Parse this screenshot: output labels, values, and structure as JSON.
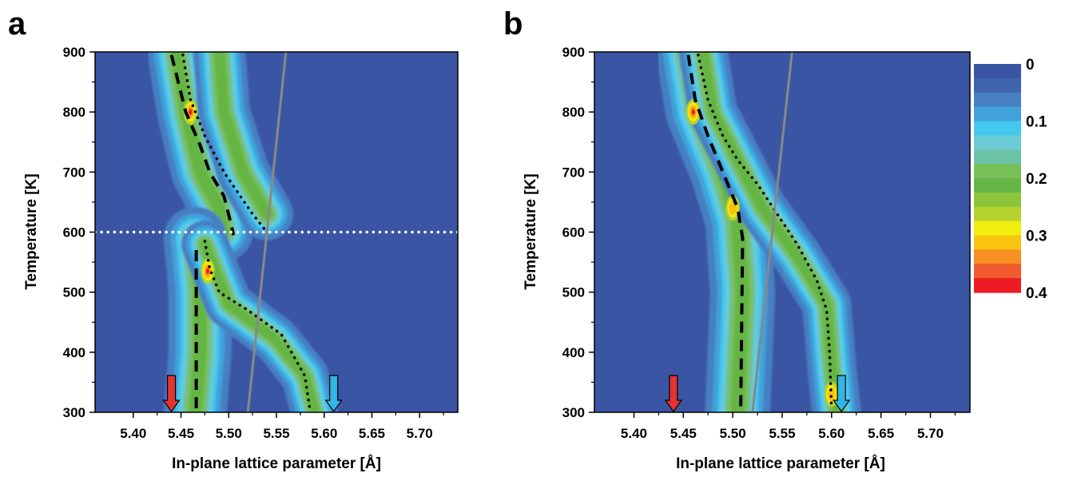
{
  "chart_data": [
    {
      "type": "heatmap",
      "panel_label": "a",
      "xlabel": "In-plane lattice parameter [Å]",
      "ylabel": "Temperature [K]",
      "xlim": [
        5.36,
        5.74
      ],
      "ylim": [
        300,
        900
      ],
      "xticks": [
        5.4,
        5.45,
        5.5,
        5.55,
        5.6,
        5.65,
        5.7
      ],
      "xtick_labels": [
        "5.40",
        "5.45",
        "5.50",
        "5.55",
        "5.60",
        "5.65",
        "5.70"
      ],
      "yticks": [
        300,
        400,
        500,
        600,
        700,
        800,
        900
      ],
      "ytick_labels": [
        "300",
        "400",
        "500",
        "600",
        "700",
        "800",
        "900"
      ],
      "background_color": "#3a55a3",
      "bands": [
        {
          "points": [
            [
              5.445,
              900
            ],
            [
              5.455,
              800
            ],
            [
              5.47,
              700
            ],
            [
              5.49,
              640
            ],
            [
              5.495,
              600
            ]
          ],
          "width": 0.055
        },
        {
          "points": [
            [
              5.49,
              900
            ],
            [
              5.495,
              800
            ],
            [
              5.515,
              700
            ],
            [
              5.54,
              630
            ]
          ],
          "width": 0.05
        },
        {
          "points": [
            [
              5.465,
              590
            ],
            [
              5.47,
              500
            ],
            [
              5.47,
              400
            ],
            [
              5.465,
              300
            ]
          ],
          "width": 0.06
        },
        {
          "points": [
            [
              5.475,
              580
            ],
            [
              5.5,
              480
            ],
            [
              5.55,
              420
            ],
            [
              5.58,
              360
            ],
            [
              5.59,
              300
            ]
          ],
          "width": 0.045
        }
      ],
      "hotspots": [
        {
          "x": 5.46,
          "y": 800,
          "value": 0.33
        },
        {
          "x": 5.478,
          "y": 535,
          "value": 0.36
        }
      ],
      "lines": [
        {
          "style": "dashed",
          "color": "#000000",
          "points": [
            [
              5.44,
              895
            ],
            [
              5.455,
              800
            ],
            [
              5.47,
              745
            ],
            [
              5.48,
              700
            ],
            [
              5.495,
              660
            ],
            [
              5.503,
              610
            ],
            [
              5.505,
              595
            ]
          ]
        },
        {
          "style": "dashed",
          "color": "#000000",
          "points": [
            [
              5.466,
              570
            ],
            [
              5.466,
              300
            ]
          ]
        },
        {
          "style": "dotted",
          "color": "#000000",
          "points": [
            [
              5.452,
              895
            ],
            [
              5.46,
              820
            ],
            [
              5.475,
              760
            ],
            [
              5.495,
              700
            ],
            [
              5.51,
              665
            ],
            [
              5.525,
              630
            ],
            [
              5.54,
              600
            ]
          ]
        },
        {
          "style": "dotted",
          "color": "#000000",
          "points": [
            [
              5.475,
              585
            ],
            [
              5.48,
              540
            ],
            [
              5.49,
              500
            ],
            [
              5.52,
              470
            ],
            [
              5.555,
              430
            ],
            [
              5.58,
              360
            ],
            [
              5.585,
              305
            ]
          ]
        },
        {
          "style": "solid",
          "color": "#888888",
          "points": [
            [
              5.56,
              900
            ],
            [
              5.52,
              300
            ]
          ]
        },
        {
          "style": "dotted-white",
          "color": "#ffffff",
          "points": [
            [
              5.36,
              600
            ],
            [
              5.74,
              600
            ]
          ]
        }
      ],
      "arrows": [
        {
          "x": 5.44,
          "color": "#e53232"
        },
        {
          "x": 5.61,
          "color": "#33b5e5"
        }
      ]
    },
    {
      "type": "heatmap",
      "panel_label": "b",
      "xlabel": "In-plane lattice parameter [Å]",
      "ylabel": "Temperature [K]",
      "xlim": [
        5.36,
        5.74
      ],
      "ylim": [
        300,
        900
      ],
      "xticks": [
        5.4,
        5.45,
        5.5,
        5.55,
        5.6,
        5.65,
        5.7
      ],
      "xtick_labels": [
        "5.40",
        "5.45",
        "5.50",
        "5.55",
        "5.60",
        "5.65",
        "5.70"
      ],
      "yticks": [
        300,
        400,
        500,
        600,
        700,
        800,
        900
      ],
      "ytick_labels": [
        "300",
        "400",
        "500",
        "600",
        "700",
        "800",
        "900"
      ],
      "background_color": "#3a55a3",
      "bands": [
        {
          "points": [
            [
              5.455,
              900
            ],
            [
              5.465,
              800
            ],
            [
              5.49,
              700
            ],
            [
              5.505,
              620
            ],
            [
              5.51,
              500
            ],
            [
              5.505,
              300
            ]
          ],
          "width": 0.06
        },
        {
          "points": [
            [
              5.47,
              900
            ],
            [
              5.48,
              800
            ],
            [
              5.505,
              720
            ],
            [
              5.53,
              640
            ],
            [
              5.565,
              560
            ],
            [
              5.595,
              480
            ],
            [
              5.6,
              380
            ],
            [
              5.605,
              300
            ]
          ],
          "width": 0.045
        }
      ],
      "hotspots": [
        {
          "x": 5.46,
          "y": 800,
          "value": 0.34
        },
        {
          "x": 5.5,
          "y": 640,
          "value": 0.24
        },
        {
          "x": 5.6,
          "y": 330,
          "value": 0.3
        }
      ],
      "lines": [
        {
          "style": "dashed",
          "color": "#000000",
          "points": [
            [
              5.455,
              895
            ],
            [
              5.462,
              820
            ],
            [
              5.475,
              760
            ],
            [
              5.49,
              700
            ],
            [
              5.505,
              640
            ],
            [
              5.51,
              590
            ],
            [
              5.508,
              300
            ]
          ]
        },
        {
          "style": "dotted",
          "color": "#000000",
          "points": [
            [
              5.465,
              895
            ],
            [
              5.475,
              820
            ],
            [
              5.49,
              760
            ],
            [
              5.505,
              720
            ],
            [
              5.525,
              680
            ],
            [
              5.545,
              630
            ],
            [
              5.565,
              580
            ],
            [
              5.585,
              520
            ],
            [
              5.595,
              470
            ],
            [
              5.598,
              400
            ],
            [
              5.6,
              305
            ]
          ]
        },
        {
          "style": "solid",
          "color": "#888888",
          "points": [
            [
              5.56,
              900
            ],
            [
              5.52,
              300
            ]
          ]
        }
      ],
      "arrows": [
        {
          "x": 5.44,
          "color": "#e53232"
        },
        {
          "x": 5.61,
          "color": "#33b5e5"
        }
      ]
    }
  ],
  "colorbar": {
    "tick_labels": [
      "0",
      "0.1",
      "0.2",
      "0.3",
      "0.4"
    ],
    "tick_values": [
      0,
      0.1,
      0.2,
      0.3,
      0.4
    ],
    "colors": [
      "#3a55a3",
      "#3f63ad",
      "#4780c2",
      "#41a2dc",
      "#45c8ef",
      "#6cccd6",
      "#6cc2a7",
      "#79bf5a",
      "#65b545",
      "#8cc43c",
      "#b5d22d",
      "#f2ee0e",
      "#f8c410",
      "#f78f22",
      "#f15a2e",
      "#ed1c24"
    ]
  }
}
